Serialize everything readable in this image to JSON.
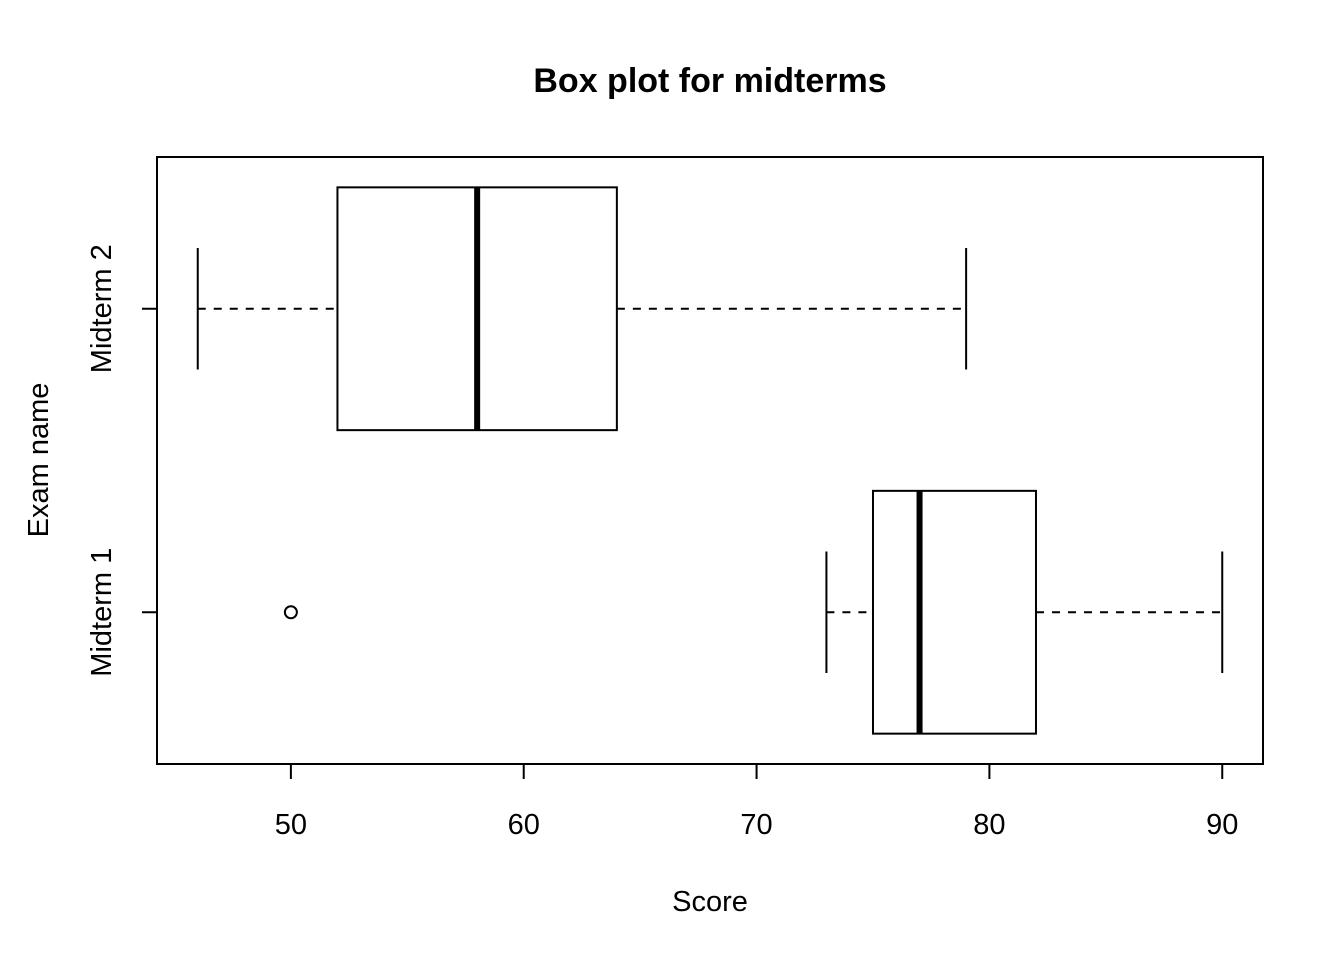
{
  "chart_data": {
    "type": "boxplot",
    "orientation": "horizontal",
    "title": "Box plot for midterms",
    "xlabel": "Score",
    "ylabel": "Exam name",
    "xlim": [
      44.25,
      91.75
    ],
    "x_ticks": [
      50,
      60,
      70,
      80,
      90
    ],
    "x_tick_labels": [
      "50",
      "60",
      "70",
      "80",
      "90"
    ],
    "categories": [
      "Midterm 1",
      "Midterm 2"
    ],
    "boxes": [
      {
        "name": "Midterm 1",
        "whisker_low": 73,
        "q1": 75,
        "median": 77,
        "q3": 82,
        "whisker_high": 90,
        "outliers": [
          50
        ]
      },
      {
        "name": "Midterm 2",
        "whisker_low": 46,
        "q1": 52,
        "median": 58,
        "q3": 64,
        "whisker_high": 79,
        "outliers": []
      }
    ],
    "grid": false
  }
}
